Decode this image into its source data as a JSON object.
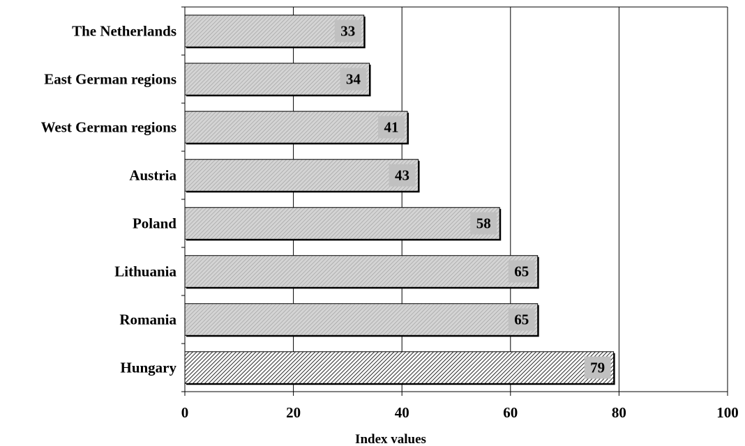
{
  "chart_data": {
    "type": "bar",
    "orientation": "horizontal",
    "title": "",
    "xlabel": "Index values",
    "ylabel": "",
    "xlim": [
      0,
      100
    ],
    "x_ticks": [
      0,
      20,
      40,
      60,
      80,
      100
    ],
    "grid": "vertical",
    "legend": "none",
    "categories": [
      "The Netherlands",
      "East German regions",
      "West German regions",
      "Austria",
      "Poland",
      "Lithuania",
      "Romania",
      "Hungary"
    ],
    "values": [
      33,
      34,
      41,
      43,
      58,
      65,
      65,
      79
    ],
    "data_labels": [
      "33",
      "34",
      "41",
      "43",
      "58",
      "65",
      "65",
      "79"
    ],
    "highlighted_category": "Hungary",
    "colors": {
      "bar_fill": "#c8c8c8",
      "bar_highlight_fill": "#8a8a8a",
      "bar_stroke": "#000000",
      "gridline": "#000000",
      "label_box": "#c0c0c0"
    }
  }
}
